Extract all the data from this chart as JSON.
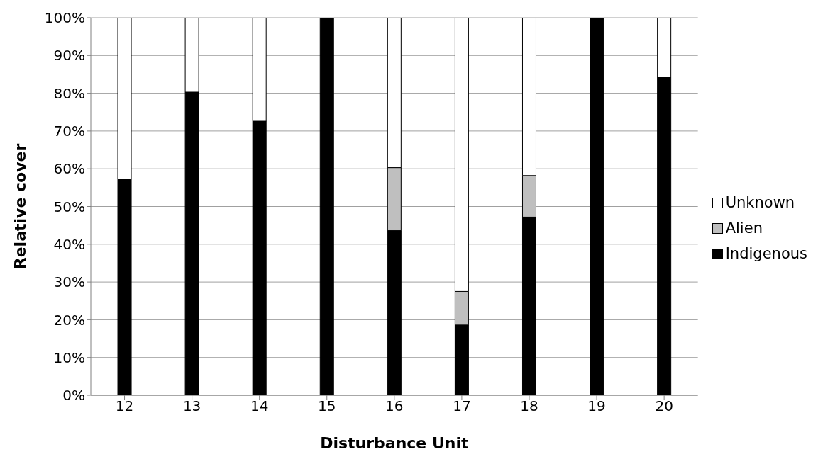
{
  "chart_data": {
    "type": "bar",
    "stacked": true,
    "xlabel": "Disturbance Unit",
    "ylabel": "Relative cover",
    "categories": [
      "12",
      "13",
      "14",
      "15",
      "16",
      "17",
      "18",
      "19",
      "20"
    ],
    "series": [
      {
        "name": "Indigenous",
        "color": "#000000",
        "values": [
          57.2,
          80.3,
          72.6,
          100,
          43.6,
          18.6,
          47.2,
          100,
          84.3
        ]
      },
      {
        "name": "Alien",
        "color": "#bfbfbf",
        "values": [
          0,
          0,
          0,
          0,
          16.7,
          8.9,
          11,
          0,
          0
        ]
      },
      {
        "name": "Unknown",
        "color": "#ffffff",
        "values": [
          42.8,
          19.7,
          27.4,
          0,
          39.7,
          72.5,
          41.8,
          0,
          15.7
        ]
      }
    ],
    "ylim": [
      0,
      100
    ],
    "yticks": [
      {
        "value": 0,
        "label": "0%"
      },
      {
        "value": 10,
        "label": "10%"
      },
      {
        "value": 20,
        "label": "20%"
      },
      {
        "value": 30,
        "label": "30%"
      },
      {
        "value": 40,
        "label": "40%"
      },
      {
        "value": 50,
        "label": "50%"
      },
      {
        "value": 60,
        "label": "60%"
      },
      {
        "value": 70,
        "label": "70%"
      },
      {
        "value": 80,
        "label": "80%"
      },
      {
        "value": 90,
        "label": "90%"
      },
      {
        "value": 100,
        "label": "100%"
      }
    ],
    "grid": "y",
    "legend": "right"
  }
}
